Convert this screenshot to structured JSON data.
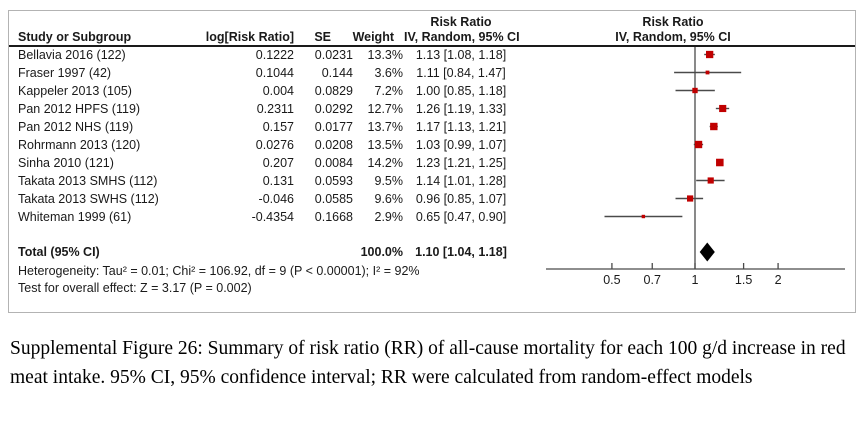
{
  "colors": {
    "marker_red": "#c00000",
    "line_gray": "#4a4a4a",
    "diamond_black": "#000000",
    "separator_black": "#1a1a1a",
    "border_gray": "#b3b3b3"
  },
  "figure": {
    "col_headers": {
      "study": "Study or Subgroup",
      "log_rr": "log[Risk Ratio]",
      "se": "SE",
      "weight": "Weight",
      "effect_title": "Risk Ratio",
      "effect_ci": "IV, Random, 95% CI"
    },
    "plot_headers": {
      "title": "Risk Ratio",
      "subtitle": "IV, Random, 95% CI"
    },
    "total_row": {
      "label": "Total (95% CI)",
      "weight": "100.0%",
      "ci_text": "1.10 [1.04, 1.18]"
    },
    "heterogeneity_line": "Heterogeneity: Tau² = 0.01; Chi² = 106.92, df = 9 (P < 0.00001); I² = 92%",
    "overall_effect_line": "Test for overall effect: Z = 3.17 (P = 0.002)"
  },
  "chart_data": {
    "type": "forest",
    "effect_measure": "Risk Ratio",
    "method": "IV, Random, 95% CI",
    "x_scale": "log",
    "x_ticks": [
      "0.5",
      "0.7",
      "1",
      "1.5",
      "2"
    ],
    "x_range": [
      0.28,
      3.5
    ],
    "studies": [
      {
        "name": "Bellavia 2016 (122)",
        "log_rr": "0.1222",
        "se": "0.0231",
        "weight": "13.3%",
        "ci_text": "1.13 [1.08, 1.18]",
        "rr": 1.13,
        "lo": 1.08,
        "hi": 1.18,
        "w": 13.3
      },
      {
        "name": "Fraser 1997 (42)",
        "log_rr": "0.1044",
        "se": "0.144",
        "weight": "3.6%",
        "ci_text": "1.11 [0.84, 1.47]",
        "rr": 1.11,
        "lo": 0.84,
        "hi": 1.47,
        "w": 3.6
      },
      {
        "name": "Kappeler 2013 (105)",
        "log_rr": "0.004",
        "se": "0.0829",
        "weight": "7.2%",
        "ci_text": "1.00 [0.85, 1.18]",
        "rr": 1.0,
        "lo": 0.85,
        "hi": 1.18,
        "w": 7.2
      },
      {
        "name": "Pan 2012 HPFS (119)",
        "log_rr": "0.2311",
        "se": "0.0292",
        "weight": "12.7%",
        "ci_text": "1.26 [1.19, 1.33]",
        "rr": 1.26,
        "lo": 1.19,
        "hi": 1.33,
        "w": 12.7
      },
      {
        "name": "Pan 2012 NHS (119)",
        "log_rr": "0.157",
        "se": "0.0177",
        "weight": "13.7%",
        "ci_text": "1.17 [1.13, 1.21]",
        "rr": 1.17,
        "lo": 1.13,
        "hi": 1.21,
        "w": 13.7
      },
      {
        "name": "Rohrmann 2013 (120)",
        "log_rr": "0.0276",
        "se": "0.0208",
        "weight": "13.5%",
        "ci_text": "1.03 [0.99, 1.07]",
        "rr": 1.03,
        "lo": 0.99,
        "hi": 1.07,
        "w": 13.5
      },
      {
        "name": "Sinha 2010 (121)",
        "log_rr": "0.207",
        "se": "0.0084",
        "weight": "14.2%",
        "ci_text": "1.23 [1.21, 1.25]",
        "rr": 1.23,
        "lo": 1.21,
        "hi": 1.25,
        "w": 14.2
      },
      {
        "name": "Takata 2013 SMHS (112)",
        "log_rr": "0.131",
        "se": "0.0593",
        "weight": "9.5%",
        "ci_text": "1.14 [1.01, 1.28]",
        "rr": 1.14,
        "lo": 1.01,
        "hi": 1.28,
        "w": 9.5
      },
      {
        "name": "Takata 2013 SWHS (112)",
        "log_rr": "-0.046",
        "se": "0.0585",
        "weight": "9.6%",
        "ci_text": "0.96 [0.85, 1.07]",
        "rr": 0.96,
        "lo": 0.85,
        "hi": 1.07,
        "w": 9.6
      },
      {
        "name": "Whiteman 1999 (61)",
        "log_rr": "-0.4354",
        "se": "0.1668",
        "weight": "2.9%",
        "ci_text": "0.65 [0.47, 0.90]",
        "rr": 0.65,
        "lo": 0.47,
        "hi": 0.9,
        "w": 2.9
      }
    ],
    "total": {
      "name": "Total (95% CI)",
      "weight_pct": 100.0,
      "rr": 1.1,
      "lo": 1.04,
      "hi": 1.18
    },
    "heterogeneity": {
      "tau2": 0.01,
      "chi2": 106.92,
      "df": 9,
      "p": "P < 0.00001",
      "i2": "92%"
    },
    "overall_effect": {
      "z": 3.17,
      "p": 0.002
    }
  },
  "caption": {
    "text": "Supplemental Figure 26: Summary of risk ratio (RR) of all-cause mortality for each 100 g/d increase in red meat intake. 95% CI, 95% confidence interval; RR were calculated from random-effect models"
  }
}
